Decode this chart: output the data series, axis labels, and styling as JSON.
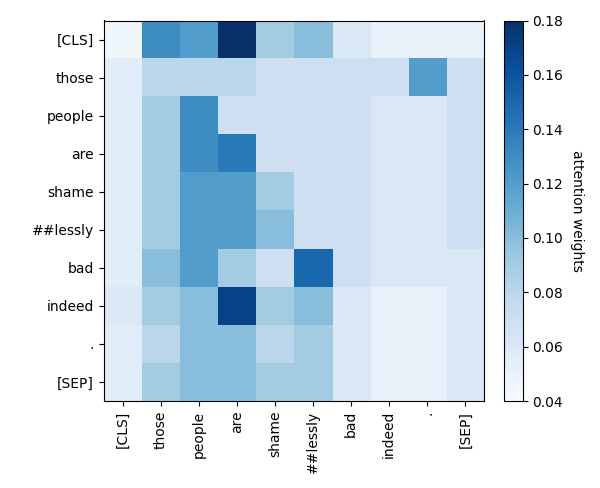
{
  "tokens": [
    "[CLS]",
    "those",
    "people",
    "are",
    "shame",
    "##lessly",
    "bad",
    "indeed",
    ".",
    "[SEP]"
  ],
  "matrix": [
    [
      0.045,
      0.13,
      0.12,
      0.19,
      0.09,
      0.1,
      0.06,
      0.05,
      0.05,
      0.05
    ],
    [
      0.055,
      0.08,
      0.08,
      0.08,
      0.07,
      0.07,
      0.07,
      0.07,
      0.12,
      0.07
    ],
    [
      0.055,
      0.09,
      0.13,
      0.07,
      0.07,
      0.07,
      0.07,
      0.06,
      0.06,
      0.07
    ],
    [
      0.055,
      0.09,
      0.13,
      0.14,
      0.07,
      0.07,
      0.07,
      0.06,
      0.06,
      0.07
    ],
    [
      0.055,
      0.09,
      0.12,
      0.12,
      0.09,
      0.07,
      0.07,
      0.06,
      0.06,
      0.07
    ],
    [
      0.055,
      0.09,
      0.12,
      0.12,
      0.1,
      0.07,
      0.07,
      0.06,
      0.06,
      0.07
    ],
    [
      0.055,
      0.1,
      0.12,
      0.09,
      0.07,
      0.15,
      0.07,
      0.06,
      0.06,
      0.06
    ],
    [
      0.06,
      0.09,
      0.1,
      0.17,
      0.09,
      0.1,
      0.06,
      0.05,
      0.05,
      0.06
    ],
    [
      0.055,
      0.08,
      0.1,
      0.1,
      0.08,
      0.09,
      0.06,
      0.05,
      0.05,
      0.06
    ],
    [
      0.055,
      0.09,
      0.1,
      0.1,
      0.09,
      0.09,
      0.06,
      0.05,
      0.05,
      0.06
    ]
  ],
  "vmin": 0.04,
  "vmax": 0.18,
  "cmap": "Blues",
  "colorbar_label": "attention weights",
  "colorbar_ticks": [
    0.04,
    0.06,
    0.08,
    0.1,
    0.12,
    0.14,
    0.16,
    0.18
  ],
  "figsize": [
    6.0,
    4.88
  ],
  "dpi": 100
}
